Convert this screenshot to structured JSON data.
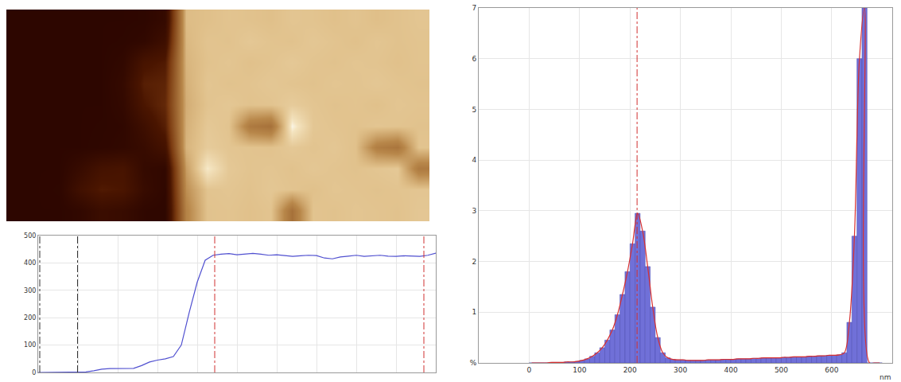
{
  "chart_data": [
    {
      "type": "heatmap",
      "zlim": [
        0,
        500
      ],
      "tick_labels": false,
      "z": [
        [
          8,
          8,
          8,
          8,
          8,
          8,
          10,
          30,
          420,
          425,
          430,
          428,
          425,
          432,
          430,
          426,
          430,
          424,
          428,
          432
        ],
        [
          8,
          8,
          8,
          8,
          8,
          10,
          20,
          60,
          415,
          430,
          428,
          435,
          430,
          428,
          434,
          430,
          426,
          432,
          428,
          430
        ],
        [
          8,
          8,
          8,
          8,
          8,
          20,
          90,
          110,
          410,
          428,
          432,
          426,
          430,
          436,
          430,
          428,
          432,
          430,
          426,
          430
        ],
        [
          8,
          8,
          8,
          8,
          8,
          30,
          120,
          130,
          405,
          432,
          428,
          430,
          434,
          430,
          428,
          432,
          430,
          434,
          430,
          428
        ],
        [
          8,
          8,
          8,
          8,
          8,
          25,
          100,
          140,
          400,
          430,
          434,
          428,
          430,
          440,
          432,
          428,
          430,
          426,
          432,
          430
        ],
        [
          8,
          8,
          8,
          8,
          10,
          15,
          60,
          120,
          405,
          436,
          430,
          320,
          300,
          490,
          434,
          430,
          428,
          432,
          430,
          428
        ],
        [
          8,
          8,
          8,
          8,
          12,
          20,
          40,
          80,
          410,
          440,
          432,
          430,
          428,
          436,
          430,
          434,
          426,
          330,
          310,
          430
        ],
        [
          8,
          8,
          8,
          40,
          80,
          90,
          30,
          20,
          380,
          480,
          436,
          430,
          432,
          428,
          434,
          430,
          428,
          432,
          436,
          320
        ],
        [
          8,
          8,
          10,
          70,
          110,
          100,
          40,
          15,
          360,
          430,
          432,
          428,
          434,
          430,
          426,
          432,
          430,
          428,
          430,
          432
        ],
        [
          8,
          8,
          8,
          20,
          50,
          40,
          15,
          10,
          340,
          428,
          430,
          426,
          430,
          300,
          430,
          428,
          432,
          430,
          428,
          434
        ]
      ]
    },
    {
      "type": "line",
      "color": "#5050d0",
      "grid": true,
      "tick_labels": "y",
      "x": [
        0,
        2,
        4,
        6,
        8,
        10,
        12,
        14,
        16,
        18,
        20,
        22,
        24,
        26,
        28,
        30,
        32,
        34,
        36,
        38,
        40,
        42,
        44,
        46,
        48,
        50,
        52,
        54,
        56,
        58,
        60,
        62,
        64,
        66,
        68,
        70,
        72,
        74,
        76,
        78,
        80,
        82,
        84,
        86,
        88,
        90,
        92,
        94,
        96,
        98,
        100
      ],
      "values": [
        0,
        0,
        0,
        0,
        0,
        0,
        2,
        6,
        12,
        14,
        14,
        14,
        15,
        25,
        38,
        45,
        50,
        58,
        100,
        220,
        330,
        410,
        428,
        432,
        434,
        430,
        432,
        435,
        432,
        428,
        430,
        428,
        424,
        426,
        428,
        427,
        418,
        415,
        422,
        425,
        428,
        424,
        426,
        428,
        425,
        424,
        426,
        425,
        424,
        428,
        436
      ],
      "xlim": [
        0,
        100
      ],
      "ylim": [
        0,
        500
      ],
      "xticks": [
        0,
        10,
        20,
        30,
        40,
        50,
        60,
        70,
        80,
        90,
        100
      ],
      "yticks": [
        0,
        100,
        200,
        300,
        400,
        500
      ],
      "cursors": [
        {
          "x": 0.4,
          "color": "#333333"
        },
        {
          "x": 9.9,
          "color": "#333333"
        },
        {
          "x": 44.4,
          "color": "#d03030"
        },
        {
          "x": 97,
          "color": "#d03030"
        }
      ]
    },
    {
      "type": "histogram",
      "color": "#7070d8",
      "grid": true,
      "xlabel": "nm",
      "bins": [
        0,
        10,
        20,
        30,
        40,
        50,
        60,
        70,
        80,
        90,
        100,
        110,
        120,
        130,
        140,
        150,
        160,
        170,
        180,
        190,
        200,
        210,
        220,
        230,
        240,
        250,
        260,
        270,
        280,
        290,
        300,
        310,
        320,
        330,
        340,
        350,
        360,
        370,
        380,
        390,
        400,
        410,
        420,
        430,
        440,
        450,
        460,
        470,
        480,
        490,
        500,
        510,
        520,
        530,
        540,
        550,
        560,
        570,
        580,
        590,
        600,
        610,
        620,
        630,
        640,
        650,
        660,
        670,
        680,
        690,
        700
      ],
      "counts": [
        0,
        0,
        0,
        0,
        0.01,
        0.01,
        0.01,
        0.02,
        0.02,
        0.03,
        0.05,
        0.08,
        0.13,
        0.2,
        0.3,
        0.45,
        0.65,
        0.95,
        1.35,
        1.8,
        2.35,
        2.95,
        2.6,
        1.9,
        1.1,
        0.5,
        0.2,
        0.1,
        0.07,
        0.06,
        0.06,
        0.05,
        0.05,
        0.05,
        0.05,
        0.06,
        0.06,
        0.06,
        0.07,
        0.07,
        0.07,
        0.08,
        0.08,
        0.08,
        0.09,
        0.09,
        0.1,
        0.1,
        0.1,
        0.1,
        0.11,
        0.11,
        0.12,
        0.12,
        0.12,
        0.13,
        0.13,
        0.14,
        0.14,
        0.15,
        0.15,
        0.16,
        0.2,
        0.8,
        2.5,
        6.0,
        7.0,
        0,
        0,
        0
      ],
      "xlim": [
        -100,
        720
      ],
      "ylim": [
        0,
        7
      ],
      "xticks": [
        0,
        100,
        200,
        300,
        400,
        500,
        600
      ],
      "yticks": [
        {
          "value": 0,
          "label": "%"
        },
        1,
        2,
        3,
        4,
        5,
        6,
        7
      ],
      "markers": [
        214
      ]
    }
  ]
}
